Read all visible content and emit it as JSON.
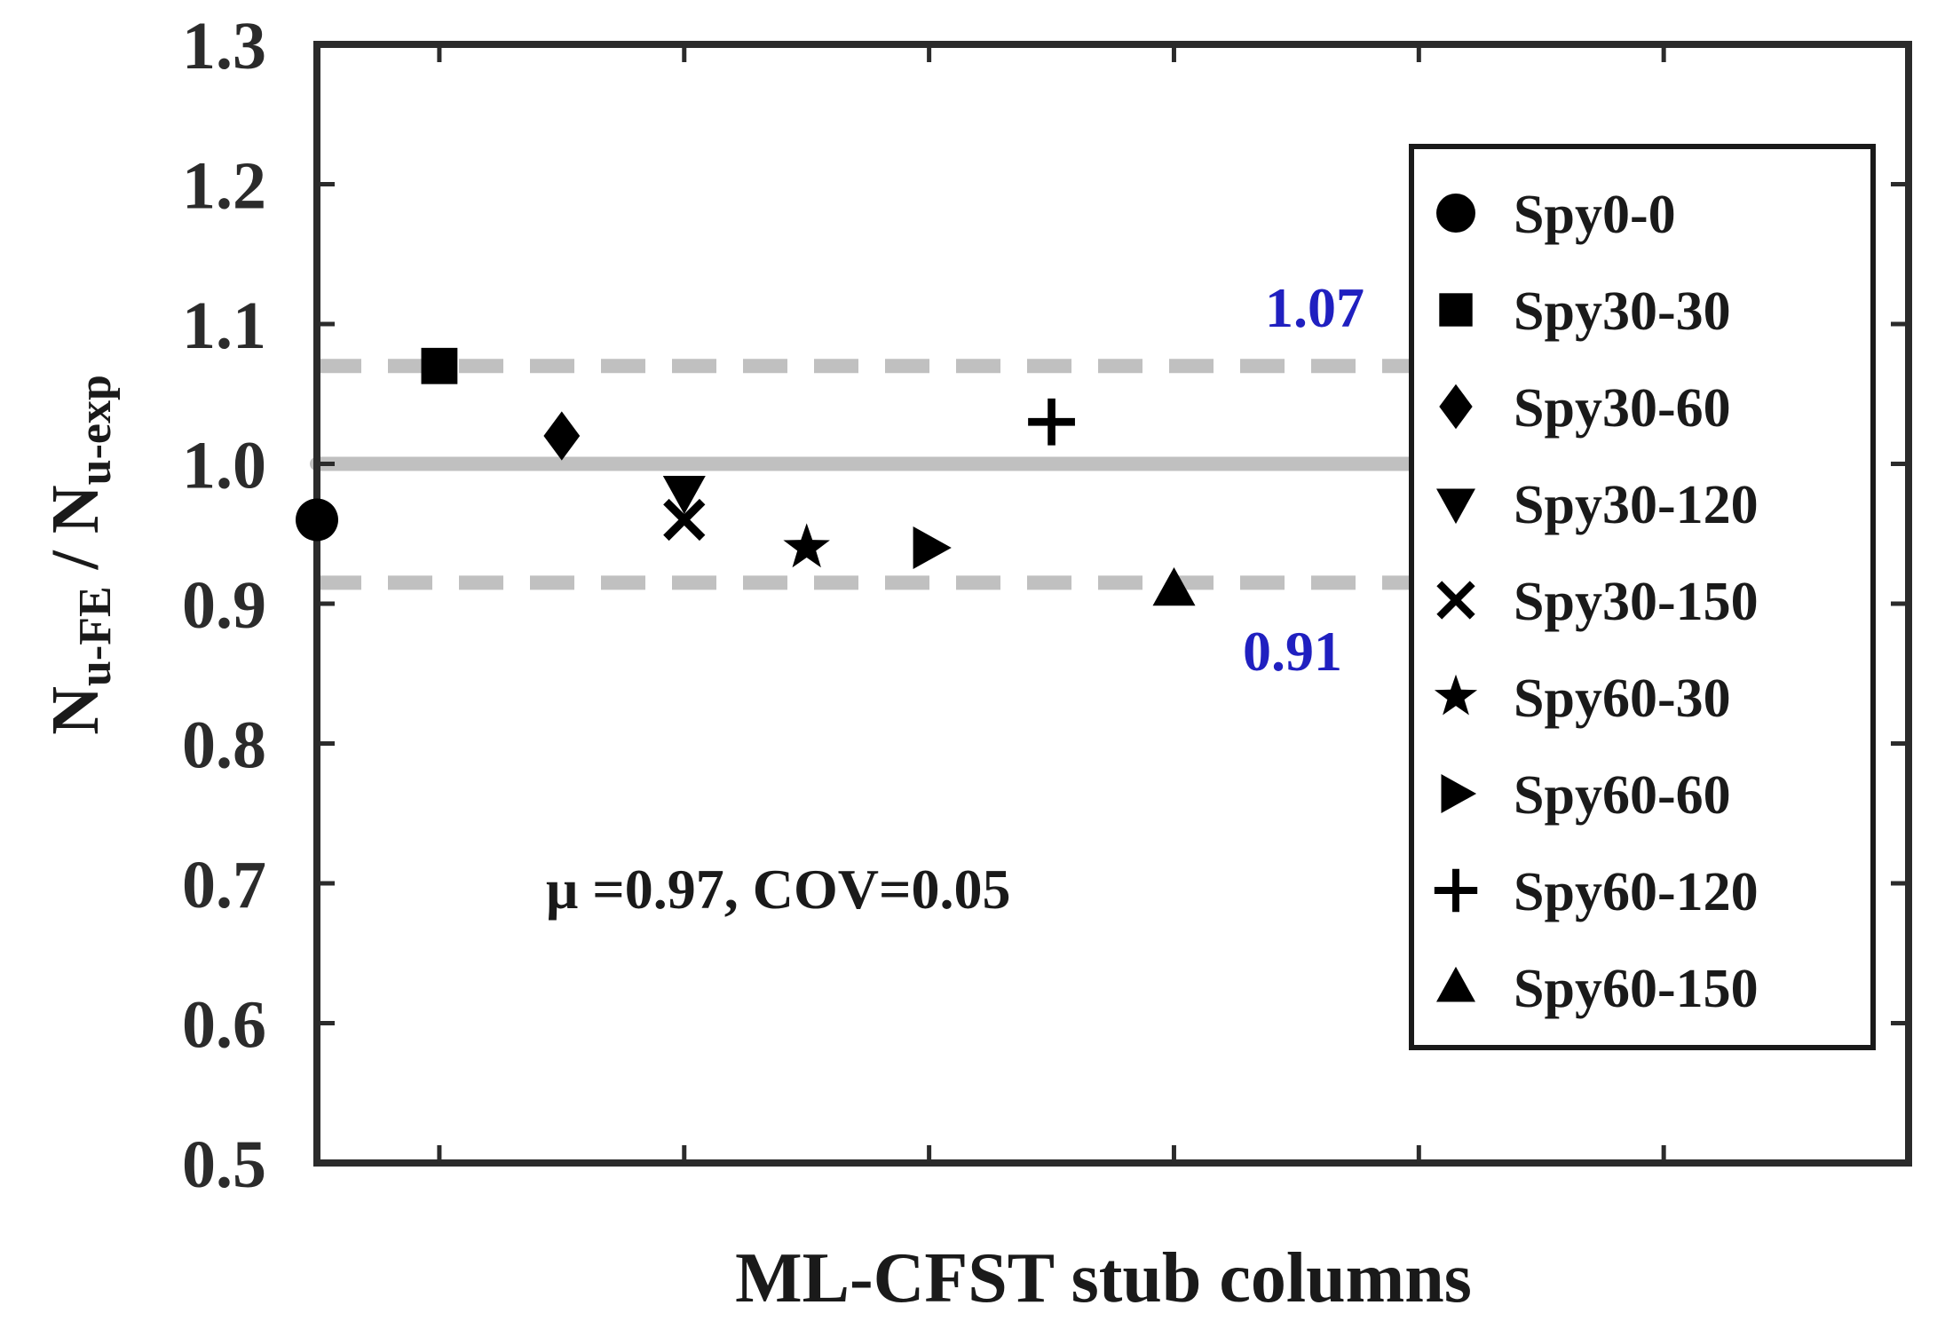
{
  "chart_data": {
    "type": "scatter",
    "title": "",
    "xlabel": "ML-CFST stub columns",
    "ylabel": {
      "base1": "N",
      "sub1": "u-FE",
      "sep": " / ",
      "base2": "N",
      "sub2": "u-exp"
    },
    "xlim": [
      0,
      13
    ],
    "ylim": [
      0.5,
      1.3
    ],
    "yticks": [
      "0.5",
      "0.6",
      "0.7",
      "0.8",
      "0.9",
      "1.0",
      "1.1",
      "1.2",
      "1.3"
    ],
    "grid": false,
    "legend_position": "right",
    "series": [
      {
        "name": "Spy0-0",
        "marker": "circle",
        "x": 0,
        "y": 0.96
      },
      {
        "name": "Spy30-30",
        "marker": "square",
        "x": 1,
        "y": 1.07
      },
      {
        "name": "Spy30-60",
        "marker": "diamond",
        "x": 2,
        "y": 1.02
      },
      {
        "name": "Spy30-120",
        "marker": "triangle-down",
        "x": 3,
        "y": 0.98
      },
      {
        "name": "Spy30-150",
        "marker": "x",
        "x": 3,
        "y": 0.96
      },
      {
        "name": "Spy60-30",
        "marker": "star",
        "x": 4,
        "y": 0.94
      },
      {
        "name": "Spy60-60",
        "marker": "triangle-right",
        "x": 5,
        "y": 0.94
      },
      {
        "name": "Spy60-120",
        "marker": "plus",
        "x": 6,
        "y": 1.03
      },
      {
        "name": "Spy60-150",
        "marker": "triangle-up",
        "x": 7,
        "y": 0.91
      }
    ],
    "reference_lines": [
      {
        "y": 1.0,
        "style": "solid",
        "x_end": 9
      },
      {
        "y": 1.07,
        "style": "dashed",
        "label": "1.07",
        "x_end": 9
      },
      {
        "y": 0.915,
        "style": "dashed",
        "label": "0.91",
        "x_end": 9
      }
    ],
    "annotation": "μ =0.97, COV=0.05",
    "colors": {
      "marker": "#000000",
      "ref_line": "#c0c0c0",
      "bound_label": "#2020c0",
      "axis": "#2b2b2b"
    }
  }
}
